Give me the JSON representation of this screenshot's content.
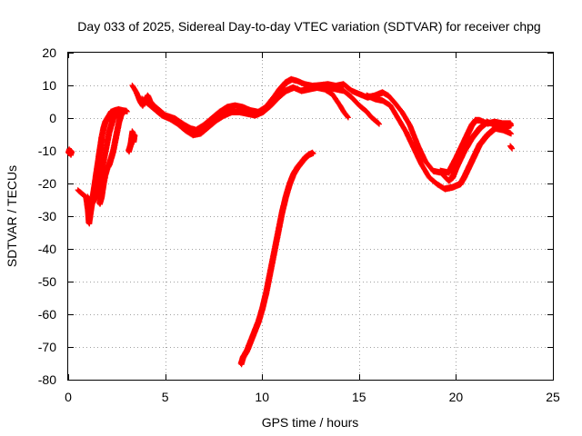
{
  "chart_data": {
    "type": "scatter",
    "title": "Day 033 of 2025, Sidereal Day-to-day VTEC variation (SDTVAR) for receiver chpg",
    "xlabel": "GPS time / hours",
    "ylabel": "SDTVAR / TECUs",
    "xlim": [
      0,
      25
    ],
    "ylim": [
      -80,
      20
    ],
    "xticks": [
      0,
      5,
      10,
      15,
      20,
      25
    ],
    "yticks": [
      -80,
      -70,
      -60,
      -50,
      -40,
      -30,
      -20,
      -10,
      0,
      10,
      20
    ],
    "xtick_labels": [
      "0",
      "5",
      "10",
      "15",
      "20",
      "25"
    ],
    "ytick_labels": [
      "-80",
      "-70",
      "-60",
      "-50",
      "-40",
      "-30",
      "-20",
      "-10",
      "0",
      "10",
      "20"
    ],
    "grid": true,
    "marker": "+",
    "color": "#ff0000",
    "series": [
      {
        "name": "early-isolated",
        "points": [
          [
            0.0,
            -10.5
          ],
          [
            0.05,
            -9.5
          ],
          [
            0.1,
            -11.0
          ],
          [
            0.15,
            -10.0
          ]
        ]
      },
      {
        "name": "morning-rise-a",
        "points": [
          [
            0.5,
            -22
          ],
          [
            0.7,
            -23
          ],
          [
            0.9,
            -24
          ],
          [
            1.0,
            -28
          ],
          [
            1.05,
            -32
          ],
          [
            1.1,
            -30
          ],
          [
            1.2,
            -26
          ],
          [
            1.3,
            -22
          ],
          [
            1.4,
            -18
          ],
          [
            1.5,
            -14
          ],
          [
            1.6,
            -10
          ],
          [
            1.7,
            -6
          ],
          [
            1.8,
            -3
          ],
          [
            1.9,
            -1
          ],
          [
            2.0,
            0
          ],
          [
            2.1,
            1
          ],
          [
            2.2,
            2
          ],
          [
            2.4,
            2.5
          ],
          [
            2.6,
            2.8
          ],
          [
            2.8,
            2.5
          ],
          [
            3.0,
            2.3
          ]
        ]
      },
      {
        "name": "morning-rise-b",
        "points": [
          [
            1.0,
            -24
          ],
          [
            1.2,
            -26
          ],
          [
            1.4,
            -24
          ],
          [
            1.5,
            -22
          ],
          [
            1.6,
            -20
          ],
          [
            1.7,
            -16
          ],
          [
            1.8,
            -13
          ],
          [
            1.9,
            -10
          ],
          [
            2.0,
            -7
          ],
          [
            2.1,
            -4
          ],
          [
            2.2,
            -2
          ],
          [
            2.3,
            0
          ],
          [
            2.4,
            1
          ],
          [
            2.5,
            1.5
          ]
        ]
      },
      {
        "name": "morning-rise-c",
        "points": [
          [
            1.6,
            -26
          ],
          [
            1.7,
            -24
          ],
          [
            1.8,
            -20
          ],
          [
            1.9,
            -17
          ],
          [
            2.0,
            -15
          ],
          [
            2.1,
            -14
          ],
          [
            2.2,
            -12
          ],
          [
            2.3,
            -10
          ],
          [
            2.4,
            -7
          ],
          [
            2.5,
            -4
          ],
          [
            2.6,
            -1
          ],
          [
            2.7,
            1
          ],
          [
            2.8,
            2
          ]
        ]
      },
      {
        "name": "scatter-near-3h",
        "points": [
          [
            3.1,
            -10
          ],
          [
            3.2,
            -8
          ],
          [
            3.25,
            -6
          ],
          [
            3.3,
            -4
          ],
          [
            3.35,
            -7
          ],
          [
            3.4,
            -5
          ]
        ]
      },
      {
        "name": "day-band-upper",
        "points": [
          [
            3.3,
            10
          ],
          [
            3.4,
            9
          ],
          [
            3.5,
            8
          ],
          [
            3.6,
            6.5
          ],
          [
            3.7,
            5
          ],
          [
            3.8,
            4
          ],
          [
            4.0,
            6
          ],
          [
            4.1,
            7
          ],
          [
            4.2,
            5.5
          ],
          [
            4.4,
            4
          ],
          [
            4.6,
            3
          ],
          [
            4.8,
            2
          ],
          [
            5.0,
            1
          ],
          [
            5.5,
            0
          ],
          [
            6.0,
            -2
          ],
          [
            6.3,
            -3
          ],
          [
            6.6,
            -3.5
          ],
          [
            7.0,
            -2
          ],
          [
            7.4,
            0
          ],
          [
            7.8,
            2
          ],
          [
            8.2,
            3.5
          ],
          [
            8.6,
            4
          ],
          [
            9.0,
            3.5
          ],
          [
            9.4,
            2.5
          ],
          [
            9.8,
            2
          ],
          [
            10.2,
            3.5
          ],
          [
            10.6,
            6.5
          ],
          [
            10.9,
            9
          ],
          [
            11.2,
            11
          ],
          [
            11.5,
            12
          ],
          [
            11.8,
            11.5
          ],
          [
            12.2,
            10.5
          ],
          [
            12.6,
            10
          ],
          [
            13.0,
            10.2
          ],
          [
            13.4,
            10.5
          ],
          [
            13.8,
            10
          ],
          [
            14.2,
            10.5
          ],
          [
            14.6,
            8.5
          ],
          [
            15.0,
            7.5
          ],
          [
            15.4,
            6.5
          ],
          [
            15.8,
            7
          ],
          [
            16.2,
            8
          ],
          [
            16.5,
            7
          ],
          [
            16.8,
            5
          ],
          [
            17.2,
            2
          ],
          [
            17.6,
            -2
          ],
          [
            18.0,
            -8
          ],
          [
            18.4,
            -13
          ],
          [
            18.8,
            -16
          ],
          [
            19.2,
            -16.5
          ],
          [
            19.6,
            -19
          ],
          [
            19.8,
            -18
          ],
          [
            20.0,
            -15
          ],
          [
            20.4,
            -10
          ],
          [
            20.8,
            -6
          ],
          [
            21.2,
            -3
          ],
          [
            21.6,
            -1
          ],
          [
            22.0,
            -2
          ],
          [
            22.4,
            -3
          ],
          [
            22.8,
            -2
          ]
        ]
      },
      {
        "name": "day-band-lower",
        "points": [
          [
            3.8,
            6
          ],
          [
            4.0,
            5
          ],
          [
            4.4,
            3
          ],
          [
            4.8,
            1
          ],
          [
            5.2,
            0
          ],
          [
            5.6,
            -1.5
          ],
          [
            6.0,
            -3.5
          ],
          [
            6.4,
            -5
          ],
          [
            6.8,
            -4.5
          ],
          [
            7.2,
            -2.5
          ],
          [
            7.6,
            -0.5
          ],
          [
            8.0,
            1
          ],
          [
            8.4,
            2
          ],
          [
            8.8,
            2
          ],
          [
            9.2,
            1.5
          ],
          [
            9.6,
            1
          ],
          [
            10.0,
            2
          ],
          [
            10.4,
            4
          ],
          [
            10.8,
            6.5
          ],
          [
            11.2,
            8.5
          ],
          [
            11.6,
            9.5
          ],
          [
            12.0,
            8.5
          ],
          [
            12.4,
            9
          ],
          [
            12.8,
            9.5
          ],
          [
            13.2,
            9
          ],
          [
            13.6,
            7.5
          ],
          [
            14.0,
            4
          ],
          [
            14.2,
            2
          ],
          [
            14.4,
            0.5
          ]
        ]
      },
      {
        "name": "afternoon-branch",
        "points": [
          [
            13.0,
            10
          ],
          [
            13.4,
            9.5
          ],
          [
            13.8,
            9
          ],
          [
            14.2,
            8.5
          ],
          [
            14.6,
            6.5
          ],
          [
            15.0,
            4
          ],
          [
            15.4,
            2
          ],
          [
            15.6,
            0.5
          ],
          [
            15.8,
            -0.5
          ],
          [
            16.0,
            -1.5
          ]
        ]
      },
      {
        "name": "evening-band-lower",
        "points": [
          [
            15.4,
            7
          ],
          [
            15.8,
            6
          ],
          [
            16.2,
            5.5
          ],
          [
            16.6,
            4
          ],
          [
            17.0,
            0
          ],
          [
            17.4,
            -4
          ],
          [
            17.8,
            -9
          ],
          [
            18.2,
            -14
          ],
          [
            18.6,
            -18
          ],
          [
            19.0,
            -20
          ],
          [
            19.4,
            -21.5
          ],
          [
            19.8,
            -21
          ],
          [
            20.2,
            -20
          ],
          [
            20.4,
            -18
          ],
          [
            20.8,
            -13
          ],
          [
            21.2,
            -8
          ],
          [
            21.6,
            -5
          ],
          [
            22.0,
            -3
          ],
          [
            22.4,
            -3.5
          ],
          [
            22.8,
            -4.5
          ]
        ]
      },
      {
        "name": "evening-band-upper",
        "points": [
          [
            19.2,
            -16
          ],
          [
            19.6,
            -16.5
          ],
          [
            20.0,
            -12
          ],
          [
            20.4,
            -7
          ],
          [
            20.8,
            -2
          ],
          [
            21.0,
            -0.5
          ],
          [
            21.2,
            -0.5
          ],
          [
            21.6,
            -1.5
          ],
          [
            22.0,
            -1
          ],
          [
            22.4,
            -1.5
          ],
          [
            22.8,
            -1.5
          ]
        ]
      },
      {
        "name": "late-isolated",
        "points": [
          [
            22.8,
            -8.5
          ],
          [
            22.85,
            -9
          ]
        ]
      },
      {
        "name": "steep-rise-arc",
        "points": [
          [
            8.9,
            -75
          ],
          [
            9.0,
            -73
          ],
          [
            9.2,
            -71
          ],
          [
            9.4,
            -68
          ],
          [
            9.6,
            -65
          ],
          [
            9.8,
            -62
          ],
          [
            10.0,
            -58
          ],
          [
            10.2,
            -53
          ],
          [
            10.4,
            -47
          ],
          [
            10.6,
            -41
          ],
          [
            10.8,
            -35
          ],
          [
            11.0,
            -29
          ],
          [
            11.2,
            -24
          ],
          [
            11.4,
            -20
          ],
          [
            11.6,
            -17
          ],
          [
            11.8,
            -15
          ],
          [
            12.0,
            -13.5
          ],
          [
            12.2,
            -12
          ],
          [
            12.4,
            -11
          ],
          [
            12.6,
            -10.5
          ]
        ]
      }
    ]
  }
}
